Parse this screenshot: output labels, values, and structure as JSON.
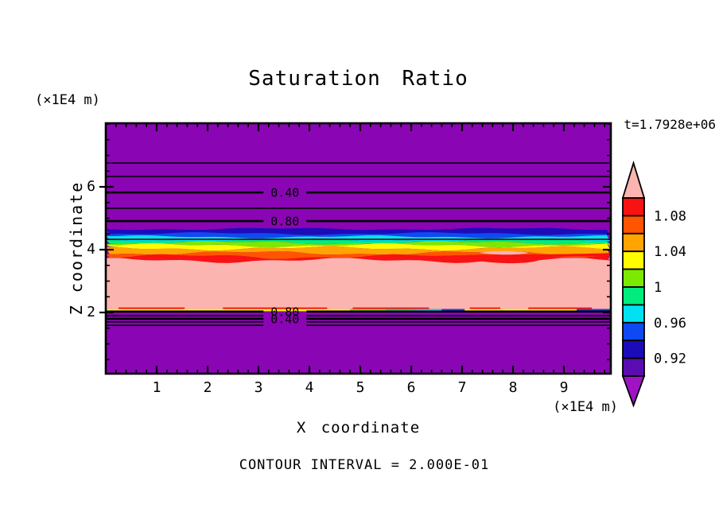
{
  "chart_data": {
    "type": "heatmap",
    "title": "Saturation Ratio",
    "time": "t=1.7928e+06",
    "xlabel": "X coordinate",
    "ylabel": "Z coordinate",
    "x_unit": "(×1E4 m)",
    "z_unit": "(×1E4 m)",
    "contour_interval_text": "CONTOUR INTERVAL = 2.000E-01",
    "contour_interval": 0.2,
    "x_range": [
      0,
      9.92
    ],
    "z_range": [
      0.05,
      8.03
    ],
    "x_ticks": [
      {
        "text": "1",
        "x": 1
      },
      {
        "text": "2",
        "x": 2
      },
      {
        "text": "3",
        "x": 3
      },
      {
        "text": "4",
        "x": 4
      },
      {
        "text": "5",
        "x": 5
      },
      {
        "text": "6",
        "x": 6
      },
      {
        "text": "7",
        "x": 7
      },
      {
        "text": "8",
        "x": 8
      },
      {
        "text": "9",
        "x": 9
      }
    ],
    "z_ticks": [
      {
        "text": "6",
        "z": 6
      },
      {
        "text": "4",
        "z": 4
      },
      {
        "text": "2",
        "z": 2
      }
    ],
    "x_minor_step": 0.2,
    "z_minor_step": 0.5,
    "background_color": "#8A05B4",
    "background_value": "saturation < 0.90",
    "bands": [
      {
        "color": "#1C0CB8",
        "z_top": 4.66,
        "value_range": [
          0.92,
          0.94
        ]
      },
      {
        "color": "#0D4AF2",
        "z_top": 4.51,
        "value_range": [
          0.94,
          0.96
        ]
      },
      {
        "color": "#00E2F2",
        "z_top": 4.41,
        "value_range": [
          0.96,
          0.98
        ]
      },
      {
        "color": "#00EC7E",
        "z_top": 4.3,
        "value_range": [
          0.98,
          1.0
        ]
      },
      {
        "color": "#7CE900",
        "z_top": 4.22,
        "value_range": [
          1.0,
          1.02
        ]
      },
      {
        "color": "#FFFB00",
        "z_top": 4.14,
        "value_range": [
          1.02,
          1.04
        ]
      },
      {
        "color": "#FFA400",
        "z_top": 4.04,
        "value_range": [
          1.04,
          1.06
        ]
      },
      {
        "color": "#FF5400",
        "z_top": 3.89,
        "value_range": [
          1.06,
          1.08
        ]
      },
      {
        "color": "#F91212",
        "z_top": 3.78,
        "z_bottom": 3.66,
        "value_range": [
          1.08,
          1.1
        ]
      }
    ],
    "pink_region": {
      "color": "#FCB4B0",
      "z_top": 3.66,
      "z_bottom": 2.13,
      "value_range": "> 1.10"
    },
    "bottom_edge": {
      "red_dash_z": 2.16,
      "red_dashes_x": [
        [
          0.25,
          1.55
        ],
        [
          2.3,
          4.35
        ],
        [
          4.85,
          6.35
        ],
        [
          7.15,
          7.75
        ],
        [
          8.3,
          9.55
        ]
      ],
      "line_z_top": 2.11,
      "line_z_bottom": 2.04,
      "line_segments": [
        {
          "color": "#FFFB00",
          "x0": 0,
          "x1": 4.8
        },
        {
          "color": "#7CE900",
          "x0": 4.8,
          "x1": 5.5
        },
        {
          "color": "#00EC7E",
          "x0": 5.5,
          "x1": 6.05
        },
        {
          "color": "#00E2F2",
          "x0": 6.05,
          "x1": 6.6
        },
        {
          "color": "#0D4AF2",
          "x0": 6.6,
          "x1": 7.05
        },
        {
          "color": "#FFFB00",
          "x0": 7.05,
          "x1": 9.25
        },
        {
          "color": "#0D4AF2",
          "x0": 9.25,
          "x1": 9.92
        }
      ]
    },
    "contour_lines": [
      {
        "z": 6.76
      },
      {
        "z": 6.33
      },
      {
        "z": 5.82,
        "label": "0.40",
        "gap": true
      },
      {
        "z": 5.32
      },
      {
        "z": 4.91,
        "label": "0.80",
        "gap": true
      },
      {
        "z": 4.33
      },
      {
        "z": 2.03,
        "label": "0.80",
        "gap": true
      },
      {
        "z": 1.9,
        "gap": true
      },
      {
        "z": 1.8,
        "label": "0.40",
        "gap": true
      },
      {
        "z": 1.7,
        "gap": true
      },
      {
        "z": 1.59,
        "gap": true
      }
    ],
    "contour_label_x": 3.52,
    "colorbar": {
      "above_color": "#FCB4B0",
      "below_color": "#A013C4",
      "boxes": [
        {
          "color": "#F91212",
          "value_range": [
            1.08,
            1.1
          ]
        },
        {
          "color": "#FF5400",
          "value_range": [
            1.06,
            1.08
          ]
        },
        {
          "color": "#FFA400",
          "value_range": [
            1.04,
            1.06
          ]
        },
        {
          "color": "#FFFB00",
          "value_range": [
            1.02,
            1.04
          ]
        },
        {
          "color": "#7CE900",
          "value_range": [
            1.0,
            1.02
          ]
        },
        {
          "color": "#00EC7E",
          "value_range": [
            0.98,
            1.0
          ]
        },
        {
          "color": "#00E2F2",
          "value_range": [
            0.96,
            0.98
          ]
        },
        {
          "color": "#0D4AF2",
          "value_range": [
            0.94,
            0.96
          ]
        },
        {
          "color": "#1C0CB8",
          "value_range": [
            0.92,
            0.94
          ]
        },
        {
          "color": "#5A0CB0",
          "value_range": [
            0.9,
            0.92
          ]
        }
      ],
      "labels": [
        {
          "text": "1.08",
          "boundary_after_box": 1
        },
        {
          "text": "1.04",
          "boundary_after_box": 3
        },
        {
          "text": "1",
          "boundary_after_box": 5
        },
        {
          "text": "0.96",
          "boundary_after_box": 7
        },
        {
          "text": "0.92",
          "boundary_after_box": 9
        }
      ]
    }
  }
}
